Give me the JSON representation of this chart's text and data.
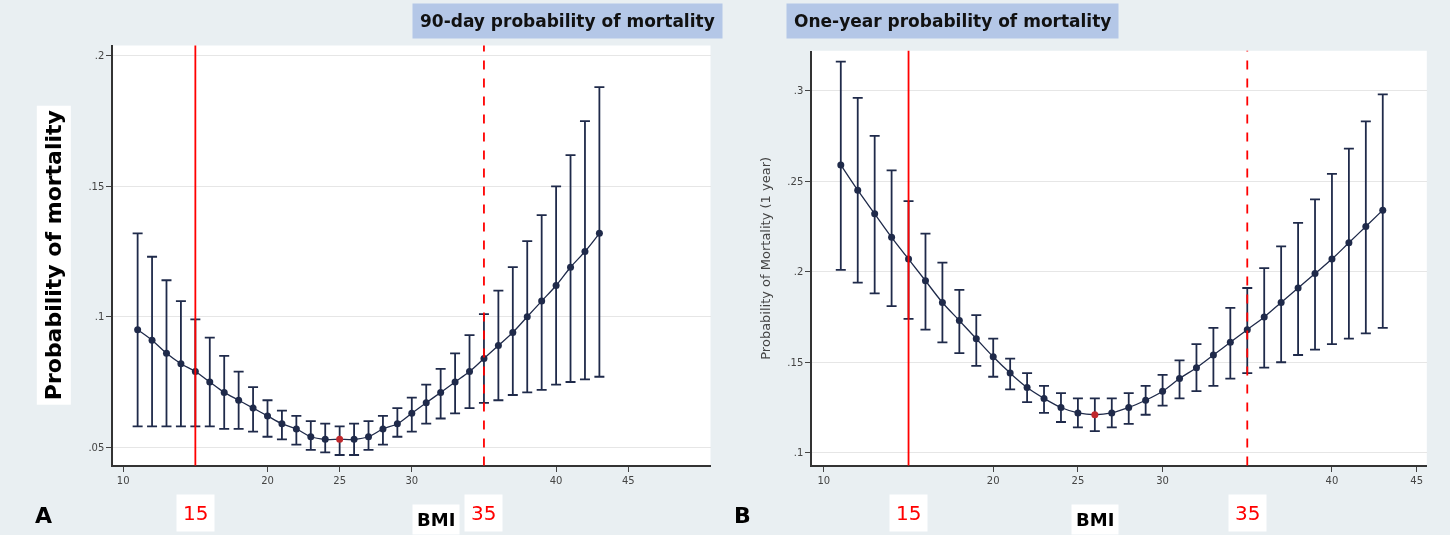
{
  "chart_data": [
    {
      "type": "line",
      "title": "90-day probability of mortality",
      "xlabel": "BMI",
      "ylabel": "Probability of mortality",
      "annotations": [
        "A"
      ],
      "marker": "circle",
      "grid": "y",
      "line_style": "solid",
      "x": [
        11,
        12,
        13,
        14,
        15,
        16,
        17,
        18,
        19,
        20,
        21,
        22,
        23,
        24,
        25,
        26,
        27,
        28,
        29,
        30,
        31,
        32,
        33,
        34,
        35,
        36,
        37,
        38,
        39,
        40,
        41,
        42,
        43
      ],
      "series": [
        {
          "color": "#1f2a4a",
          "colors": [
            "#1f2a4a",
            "#1f2a4a",
            "#1f2a4a",
            "#1f2a4a",
            "#1f2a4a",
            "#1f2a4a",
            "#1f2a4a",
            "#1f2a4a",
            "#1f2a4a",
            "#1f2a4a",
            "#1f2a4a",
            "#1f2a4a",
            "#1f2a4a",
            "#1f2a4a",
            "#c0282d",
            "#1f2a4a",
            "#1f2a4a",
            "#1f2a4a",
            "#1f2a4a",
            "#1f2a4a",
            "#1f2a4a",
            "#1f2a4a",
            "#1f2a4a",
            "#1f2a4a",
            "#1f2a4a",
            "#1f2a4a",
            "#1f2a4a",
            "#1f2a4a",
            "#1f2a4a",
            "#1f2a4a",
            "#1f2a4a",
            "#1f2a4a",
            "#1f2a4a"
          ],
          "values": [
            0.095,
            0.091,
            0.086,
            0.082,
            0.079,
            0.075,
            0.071,
            0.068,
            0.065,
            0.062,
            0.059,
            0.057,
            0.054,
            0.053,
            0.053,
            0.053,
            0.054,
            0.057,
            0.059,
            0.063,
            0.067,
            0.071,
            0.075,
            0.079,
            0.084,
            0.089,
            0.094,
            0.1,
            0.106,
            0.112,
            0.119,
            0.125,
            0.132
          ],
          "errors": [
            [
              0.058,
              0.132
            ],
            [
              0.058,
              0.123
            ],
            [
              0.058,
              0.114
            ],
            [
              0.058,
              0.106
            ],
            [
              0.058,
              0.099
            ],
            [
              0.058,
              0.092
            ],
            [
              0.057,
              0.085
            ],
            [
              0.057,
              0.079
            ],
            [
              0.056,
              0.073
            ],
            [
              0.054,
              0.068
            ],
            [
              0.053,
              0.064
            ],
            [
              0.051,
              0.062
            ],
            [
              0.049,
              0.06
            ],
            [
              0.048,
              0.059
            ],
            [
              0.047,
              0.058
            ],
            [
              0.047,
              0.059
            ],
            [
              0.049,
              0.06
            ],
            [
              0.051,
              0.062
            ],
            [
              0.054,
              0.065
            ],
            [
              0.056,
              0.069
            ],
            [
              0.059,
              0.074
            ],
            [
              0.061,
              0.08
            ],
            [
              0.063,
              0.086
            ],
            [
              0.065,
              0.093
            ],
            [
              0.067,
              0.101
            ],
            [
              0.068,
              0.11
            ],
            [
              0.07,
              0.119
            ],
            [
              0.071,
              0.129
            ],
            [
              0.072,
              0.139
            ],
            [
              0.074,
              0.15
            ],
            [
              0.075,
              0.162
            ],
            [
              0.076,
              0.175
            ],
            [
              0.077,
              0.188
            ]
          ]
        }
      ],
      "xlim": [
        9.3,
        50.7
      ],
      "ylim": [
        0.043,
        0.204
      ],
      "xticks": [
        10,
        20,
        25,
        30,
        40,
        45
      ],
      "yticks": [
        {
          "value": 0.05,
          "label": ".05"
        },
        {
          "value": 0.1,
          "label": ".1"
        },
        {
          "value": 0.15,
          "label": ".15"
        },
        {
          "value": 0.2,
          "label": ".2"
        }
      ],
      "ref_lines": [
        {
          "axis": "x",
          "value": 15,
          "label": "15",
          "color": "#ff0000",
          "line_style": "solid"
        },
        {
          "axis": "x",
          "value": 35,
          "label": "35",
          "color": "#ff0000",
          "line_style": "dashed"
        }
      ]
    },
    {
      "type": "line",
      "title": "One-year probability of mortality",
      "xlabel": "BMI",
      "ylabel": "Probability of Mortality (1 year)",
      "annotations": [
        "B"
      ],
      "marker": "circle",
      "grid": "y",
      "line_style": "solid",
      "x": [
        11,
        12,
        13,
        14,
        15,
        16,
        17,
        18,
        19,
        20,
        21,
        22,
        23,
        24,
        25,
        26,
        27,
        28,
        29,
        30,
        31,
        32,
        33,
        34,
        35,
        36,
        37,
        38,
        39,
        40,
        41,
        42,
        43
      ],
      "series": [
        {
          "color": "#1f2a4a",
          "colors": [
            "#1f2a4a",
            "#1f2a4a",
            "#1f2a4a",
            "#1f2a4a",
            "#1f2a4a",
            "#1f2a4a",
            "#1f2a4a",
            "#1f2a4a",
            "#1f2a4a",
            "#1f2a4a",
            "#1f2a4a",
            "#1f2a4a",
            "#1f2a4a",
            "#1f2a4a",
            "#1f2a4a",
            "#c0282d",
            "#1f2a4a",
            "#1f2a4a",
            "#1f2a4a",
            "#1f2a4a",
            "#1f2a4a",
            "#1f2a4a",
            "#1f2a4a",
            "#1f2a4a",
            "#1f2a4a",
            "#1f2a4a",
            "#1f2a4a",
            "#1f2a4a",
            "#1f2a4a",
            "#1f2a4a",
            "#1f2a4a",
            "#1f2a4a",
            "#1f2a4a"
          ],
          "values": [
            0.259,
            0.245,
            0.232,
            0.219,
            0.207,
            0.195,
            0.183,
            0.173,
            0.163,
            0.153,
            0.144,
            0.136,
            0.13,
            0.125,
            0.122,
            0.121,
            0.122,
            0.125,
            0.129,
            0.134,
            0.141,
            0.147,
            0.154,
            0.161,
            0.168,
            0.175,
            0.183,
            0.191,
            0.199,
            0.207,
            0.216,
            0.225,
            0.234
          ],
          "errors": [
            [
              0.201,
              0.316
            ],
            [
              0.194,
              0.296
            ],
            [
              0.188,
              0.275
            ],
            [
              0.181,
              0.256
            ],
            [
              0.174,
              0.239
            ],
            [
              0.168,
              0.221
            ],
            [
              0.161,
              0.205
            ],
            [
              0.155,
              0.19
            ],
            [
              0.148,
              0.176
            ],
            [
              0.142,
              0.163
            ],
            [
              0.135,
              0.152
            ],
            [
              0.128,
              0.144
            ],
            [
              0.122,
              0.137
            ],
            [
              0.117,
              0.133
            ],
            [
              0.114,
              0.13
            ],
            [
              0.112,
              0.13
            ],
            [
              0.114,
              0.13
            ],
            [
              0.116,
              0.133
            ],
            [
              0.121,
              0.137
            ],
            [
              0.126,
              0.143
            ],
            [
              0.13,
              0.151
            ],
            [
              0.134,
              0.16
            ],
            [
              0.137,
              0.169
            ],
            [
              0.141,
              0.18
            ],
            [
              0.144,
              0.191
            ],
            [
              0.147,
              0.202
            ],
            [
              0.15,
              0.214
            ],
            [
              0.154,
              0.227
            ],
            [
              0.157,
              0.24
            ],
            [
              0.16,
              0.254
            ],
            [
              0.163,
              0.268
            ],
            [
              0.166,
              0.283
            ],
            [
              0.169,
              0.298
            ]
          ]
        }
      ],
      "xlim": [
        9.3,
        45.6
      ],
      "ylim": [
        0.093,
        0.322
      ],
      "xticks": [
        10,
        20,
        25,
        30,
        40,
        45
      ],
      "yticks": [
        {
          "value": 0.1,
          "label": ".1"
        },
        {
          "value": 0.15,
          "label": ".15"
        },
        {
          "value": 0.2,
          "label": ".2"
        },
        {
          "value": 0.25,
          "label": ".25"
        },
        {
          "value": 0.3,
          "label": ".3"
        }
      ],
      "ref_lines": [
        {
          "axis": "x",
          "value": 15,
          "label": "15",
          "color": "#ff0000",
          "line_style": "solid"
        },
        {
          "axis": "x",
          "value": 35,
          "label": "35",
          "color": "#ff0000",
          "line_style": "dashed"
        }
      ]
    }
  ]
}
